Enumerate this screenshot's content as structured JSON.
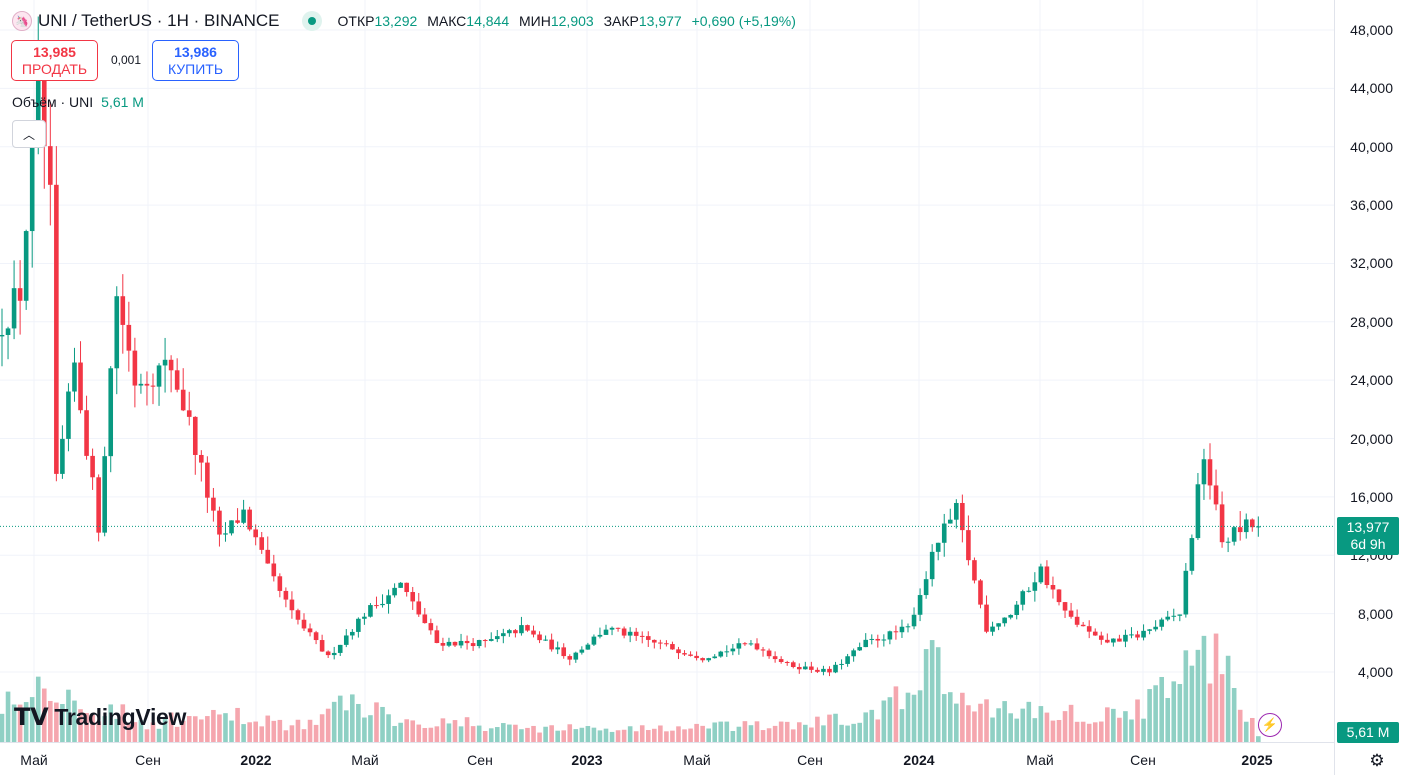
{
  "header": {
    "symbol_title": "UNI / TetherUS · 1H · BINANCE",
    "open_label": "ОТКР",
    "open": "13,292",
    "high_label": "МАКС",
    "high": "14,844",
    "low_label": "МИН",
    "low": "12,903",
    "close_label": "ЗАКР",
    "close": "13,977",
    "change": "+0,690 (+5,19%)"
  },
  "trade": {
    "sell_price": "13,985",
    "sell_label": "ПРОДАТЬ",
    "spread": "0,001",
    "buy_price": "13,986",
    "buy_label": "КУПИТЬ"
  },
  "volume_legend": {
    "label": "Объём · UNI",
    "value": "5,61 M"
  },
  "logo_text": "TradingView",
  "price_tag": {
    "price": "13,977",
    "countdown": "6d 9h"
  },
  "volume_tag": "5,61 M",
  "colors": {
    "up": "#089981",
    "down": "#f23645",
    "up_vol": "#8fd0c4",
    "down_vol": "#f5a6ae"
  },
  "chart_data": {
    "type": "candlestick",
    "title": "UNI / TetherUS · 1H · BINANCE",
    "y_ticks": [
      "48,000",
      "44,000",
      "40,000",
      "36,000",
      "32,000",
      "28,000",
      "24,000",
      "20,000",
      "16,000",
      "12,000",
      "8,000",
      "4,000"
    ],
    "y_values": [
      48,
      44,
      40,
      36,
      32,
      28,
      24,
      20,
      16,
      12,
      8,
      4
    ],
    "x_ticks": [
      {
        "label": "Май",
        "bold": false
      },
      {
        "label": "Сен",
        "bold": false
      },
      {
        "label": "2022",
        "bold": true
      },
      {
        "label": "Май",
        "bold": false
      },
      {
        "label": "Сен",
        "bold": false
      },
      {
        "label": "2023",
        "bold": true
      },
      {
        "label": "Май",
        "bold": false
      },
      {
        "label": "Сен",
        "bold": false
      },
      {
        "label": "2024",
        "bold": true
      },
      {
        "label": "Май",
        "bold": false
      },
      {
        "label": "Сен",
        "bold": false
      },
      {
        "label": "2025",
        "bold": true
      }
    ],
    "last_price": 13.977,
    "path_keypoints": [
      [
        0,
        28
      ],
      [
        3,
        30
      ],
      [
        6,
        44
      ],
      [
        8,
        36
      ],
      [
        9,
        17
      ],
      [
        12,
        25
      ],
      [
        16,
        14
      ],
      [
        19,
        30
      ],
      [
        22,
        24
      ],
      [
        28,
        25
      ],
      [
        31,
        21
      ],
      [
        36,
        13
      ],
      [
        40,
        15
      ],
      [
        44,
        11
      ],
      [
        48,
        8
      ],
      [
        54,
        5
      ],
      [
        60,
        8
      ],
      [
        66,
        10
      ],
      [
        72,
        6
      ],
      [
        80,
        6
      ],
      [
        86,
        7
      ],
      [
        94,
        5
      ],
      [
        100,
        7
      ],
      [
        108,
        6
      ],
      [
        116,
        5
      ],
      [
        124,
        6
      ],
      [
        130,
        4.5
      ],
      [
        137,
        4
      ],
      [
        143,
        6
      ],
      [
        150,
        7
      ],
      [
        155,
        13
      ],
      [
        158,
        15
      ],
      [
        163,
        7
      ],
      [
        167,
        8
      ],
      [
        172,
        11
      ],
      [
        176,
        8
      ],
      [
        182,
        6
      ],
      [
        188,
        6.5
      ],
      [
        195,
        8
      ],
      [
        199,
        19
      ],
      [
        202,
        13
      ],
      [
        206,
        14
      ],
      [
        208,
        13.977
      ]
    ],
    "volume_keypoints": [
      [
        0,
        0.14
      ],
      [
        8,
        0.2
      ],
      [
        14,
        0.08
      ],
      [
        18,
        0.11
      ],
      [
        22,
        0.06
      ],
      [
        40,
        0.08
      ],
      [
        50,
        0.05
      ],
      [
        58,
        0.13
      ],
      [
        64,
        0.08
      ],
      [
        80,
        0.05
      ],
      [
        100,
        0.04
      ],
      [
        130,
        0.05
      ],
      [
        145,
        0.08
      ],
      [
        155,
        0.25
      ],
      [
        158,
        0.12
      ],
      [
        168,
        0.1
      ],
      [
        185,
        0.08
      ],
      [
        195,
        0.18
      ],
      [
        198,
        0.28
      ],
      [
        200,
        0.3
      ],
      [
        204,
        0.16
      ],
      [
        208,
        0.03
      ]
    ]
  }
}
